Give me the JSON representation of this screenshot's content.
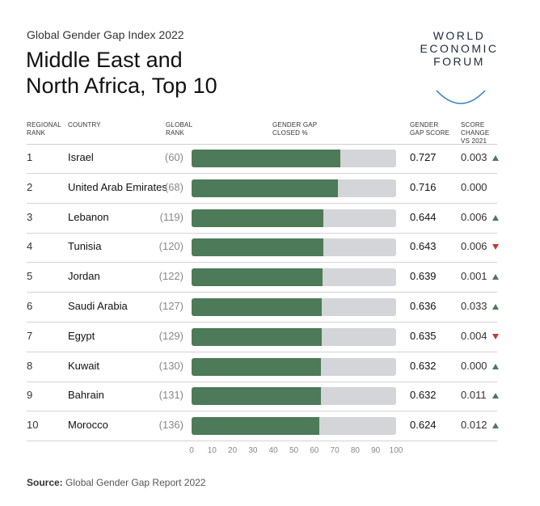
{
  "header": {
    "subtitle": "Global Gender Gap Index 2022",
    "title_line1": "Middle East and",
    "title_line2": "North Africa, Top 10"
  },
  "logo": {
    "line1": "WORLD",
    "line2": "ECONOMIC",
    "line3": "FORUM"
  },
  "columns": {
    "regional_rank_1": "REGIONAL",
    "regional_rank_2": "RANK",
    "country": "COUNTRY",
    "global_rank_1": "GLOBAL",
    "global_rank_2": "RANK",
    "closed_1": "GENDER GAP",
    "closed_2": "CLOSED %",
    "score_1": "GENDER",
    "score_2": "GAP SCORE",
    "change_1": "SCORE",
    "change_2": "CHANGE",
    "change_3": "VS 2021"
  },
  "colors": {
    "bar_fill": "#4d7a58",
    "bar_track": "#d3d5d8",
    "up_arrow": "#4d7a58",
    "down_arrow": "#c13a2f"
  },
  "chart_data": {
    "type": "bar",
    "orientation": "horizontal",
    "xlim": [
      0,
      100
    ],
    "xticks": [
      "0",
      "10",
      "20",
      "30",
      "40",
      "50",
      "60",
      "70",
      "80",
      "90",
      "100"
    ],
    "rows": [
      {
        "rank": "1",
        "country": "Israel",
        "global_rank": "(60)",
        "score": "0.727",
        "value": 72.7,
        "change": "0.003",
        "trend": "up"
      },
      {
        "rank": "2",
        "country": "United Arab Emirates",
        "global_rank": "(68)",
        "score": "0.716",
        "value": 71.6,
        "change": "0.000",
        "trend": "none"
      },
      {
        "rank": "3",
        "country": "Lebanon",
        "global_rank": "(119)",
        "score": "0.644",
        "value": 64.4,
        "change": "0.006",
        "trend": "up"
      },
      {
        "rank": "4",
        "country": "Tunisia",
        "global_rank": "(120)",
        "score": "0.643",
        "value": 64.3,
        "change": "0.006",
        "trend": "down"
      },
      {
        "rank": "5",
        "country": "Jordan",
        "global_rank": "(122)",
        "score": "0.639",
        "value": 63.9,
        "change": "0.001",
        "trend": "up"
      },
      {
        "rank": "6",
        "country": "Saudi Arabia",
        "global_rank": "(127)",
        "score": "0.636",
        "value": 63.6,
        "change": "0.033",
        "trend": "up"
      },
      {
        "rank": "7",
        "country": "Egypt",
        "global_rank": "(129)",
        "score": "0.635",
        "value": 63.5,
        "change": "0.004",
        "trend": "down"
      },
      {
        "rank": "8",
        "country": "Kuwait",
        "global_rank": "(130)",
        "score": "0.632",
        "value": 63.2,
        "change": "0.000",
        "trend": "up"
      },
      {
        "rank": "9",
        "country": "Bahrain",
        "global_rank": "(131)",
        "score": "0.632",
        "value": 63.2,
        "change": "0.011",
        "trend": "up"
      },
      {
        "rank": "10",
        "country": "Morocco",
        "global_rank": "(136)",
        "score": "0.624",
        "value": 62.4,
        "change": "0.012",
        "trend": "up"
      }
    ]
  },
  "footer": {
    "source_label": "Source:",
    "source_text": "Global Gender Gap Report 2022"
  }
}
